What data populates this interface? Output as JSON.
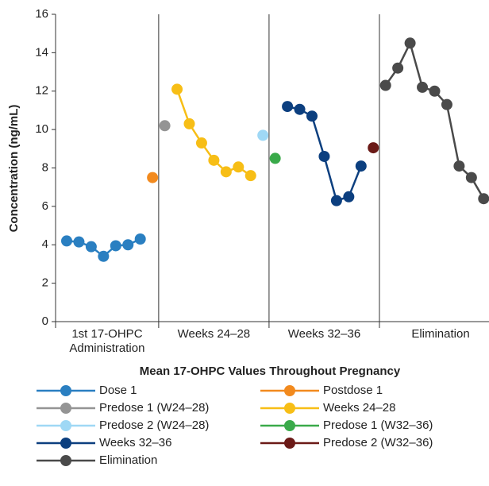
{
  "chart_data": {
    "type": "line",
    "y_label": "Concentration (ng/mL)",
    "x_label": "Mean 17-OHPC Values Throughout Pregnancy",
    "sections": [
      [
        "1st 17-OHPC",
        "Administration"
      ],
      [
        "Weeks 24–28"
      ],
      [
        "Weeks 32–36"
      ],
      [
        "Elimination"
      ]
    ],
    "categories": [
      null,
      null,
      null,
      null,
      null,
      null,
      null,
      null,
      null,
      null,
      null,
      null,
      null,
      null,
      null,
      null,
      null,
      null,
      null,
      null,
      null,
      null,
      null,
      null,
      null,
      null,
      null,
      null,
      null,
      null,
      null,
      null,
      null,
      null,
      null
    ],
    "ylim": [
      0,
      16
    ],
    "yticks": [
      0,
      2,
      4,
      6,
      8,
      10,
      12,
      14,
      16
    ],
    "grid": false,
    "series": [
      {
        "name": "Dose 1",
        "color": "#2a7fc1",
        "values": [
          4.2,
          4.15,
          3.9,
          3.4,
          3.95,
          4.0,
          4.3,
          null,
          null,
          null,
          null,
          null,
          null,
          null,
          null,
          null,
          null,
          null,
          null,
          null,
          null,
          null,
          null,
          null,
          null,
          null,
          null,
          null,
          null,
          null,
          null,
          null,
          null,
          null,
          null
        ]
      },
      {
        "name": "Postdose 1",
        "color": "#f28a1e",
        "values": [
          null,
          null,
          null,
          null,
          null,
          null,
          null,
          7.5,
          null,
          null,
          null,
          null,
          null,
          null,
          null,
          null,
          null,
          null,
          null,
          null,
          null,
          null,
          null,
          null,
          null,
          null,
          null,
          null,
          null,
          null,
          null,
          null,
          null,
          null,
          null
        ]
      },
      {
        "name": "Predose 1 (W24–28)",
        "color": "#949494",
        "values": [
          null,
          null,
          null,
          null,
          null,
          null,
          null,
          null,
          10.2,
          null,
          null,
          null,
          null,
          null,
          null,
          null,
          null,
          null,
          null,
          null,
          null,
          null,
          null,
          null,
          null,
          null,
          null,
          null,
          null,
          null,
          null,
          null,
          null,
          null,
          null
        ]
      },
      {
        "name": "Weeks 24–28",
        "color": "#f7be16",
        "values": [
          null,
          null,
          null,
          null,
          null,
          null,
          null,
          null,
          null,
          12.1,
          10.3,
          9.3,
          8.4,
          7.8,
          8.05,
          7.6,
          null,
          null,
          null,
          null,
          null,
          null,
          null,
          null,
          null,
          null,
          null,
          null,
          null,
          null,
          null,
          null,
          null,
          null,
          null
        ]
      },
      {
        "name": "Predose 2 (W24–28)",
        "color": "#9fd8f5",
        "values": [
          null,
          null,
          null,
          null,
          null,
          null,
          null,
          null,
          null,
          null,
          null,
          null,
          null,
          null,
          null,
          null,
          9.7,
          null,
          null,
          null,
          null,
          null,
          null,
          null,
          null,
          null,
          null,
          null,
          null,
          null,
          null,
          null,
          null,
          null,
          null
        ]
      },
      {
        "name": "Predose 1 (W32–36)",
        "color": "#3aaa4a",
        "values": [
          null,
          null,
          null,
          null,
          null,
          null,
          null,
          null,
          null,
          null,
          null,
          null,
          null,
          null,
          null,
          null,
          null,
          8.5,
          null,
          null,
          null,
          null,
          null,
          null,
          null,
          null,
          null,
          null,
          null,
          null,
          null,
          null,
          null,
          null,
          null
        ]
      },
      {
        "name": "Weeks 32–36",
        "color": "#0c3f7f",
        "values": [
          null,
          null,
          null,
          null,
          null,
          null,
          null,
          null,
          null,
          null,
          null,
          null,
          null,
          null,
          null,
          null,
          null,
          null,
          11.2,
          11.05,
          10.7,
          8.6,
          6.3,
          6.5,
          8.1,
          null,
          null,
          null,
          null,
          null,
          null,
          null,
          null,
          null,
          null
        ]
      },
      {
        "name": "Predose 2 (W32–36)",
        "color": "#6b1a17",
        "values": [
          null,
          null,
          null,
          null,
          null,
          null,
          null,
          null,
          null,
          null,
          null,
          null,
          null,
          null,
          null,
          null,
          null,
          null,
          null,
          null,
          null,
          null,
          null,
          null,
          null,
          9.05,
          null,
          null,
          null,
          null,
          null,
          null,
          null,
          null,
          null
        ]
      },
      {
        "name": "Elimination",
        "color": "#4a4a4a",
        "values": [
          null,
          null,
          null,
          null,
          null,
          null,
          null,
          null,
          null,
          null,
          null,
          null,
          null,
          null,
          null,
          null,
          null,
          null,
          null,
          null,
          null,
          null,
          null,
          null,
          null,
          null,
          12.3,
          13.2,
          14.5,
          12.2,
          12.0,
          11.3,
          8.1,
          7.5,
          6.4
        ]
      }
    ]
  }
}
